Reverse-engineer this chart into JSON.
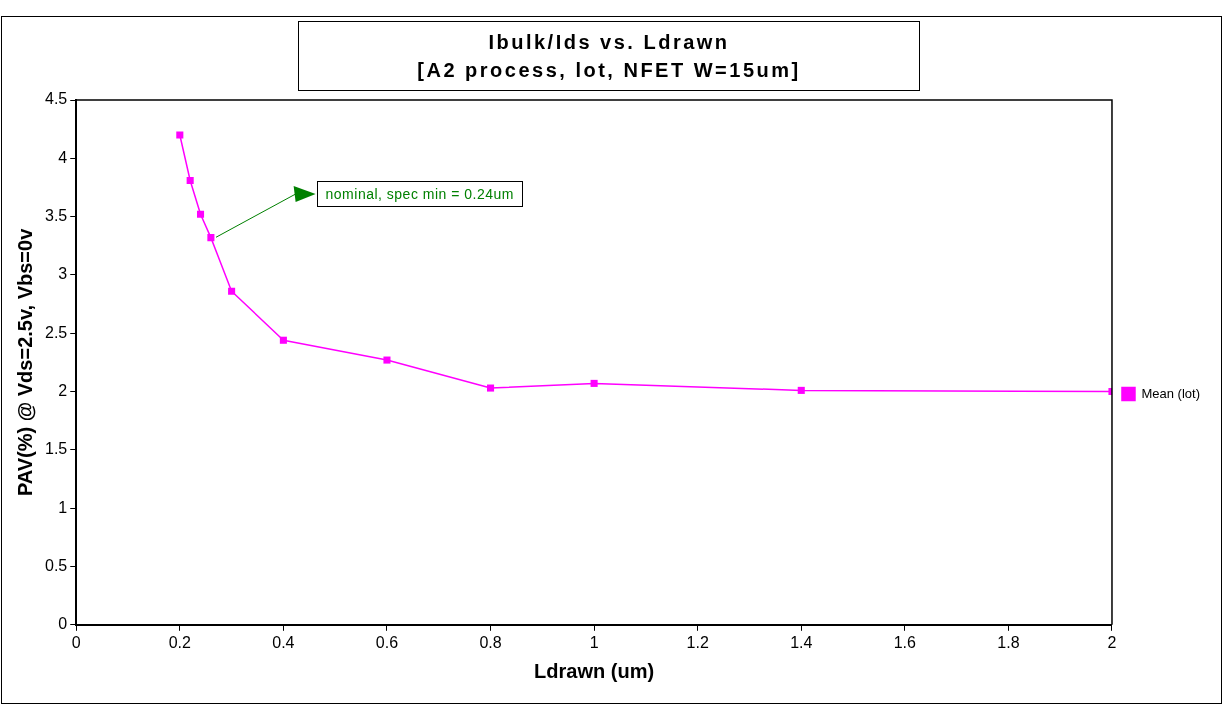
{
  "chart_data": {
    "type": "line",
    "title": "Ibulk/Ids vs. Ldrawn",
    "subtitle": "[A2 process, lot, NFET W=15um]",
    "xlabel": "Ldrawn (um)",
    "ylabel": "PAV(%) @ Vds=2.5v, Vbs=0v",
    "x": [
      0.2,
      0.22,
      0.24,
      0.26,
      0.3,
      0.4,
      0.6,
      0.8,
      1,
      1.4,
      2
    ],
    "series": [
      {
        "name": "Mean (lot)",
        "color": "#ff00ff",
        "values": [
          4.2,
          3.81,
          3.52,
          3.32,
          2.86,
          2.44,
          2.27,
          2.03,
          2.07,
          2.01,
          2.0
        ]
      }
    ],
    "xlim": [
      0,
      2
    ],
    "xticks": [
      0,
      0.2,
      0.4,
      0.6,
      0.8,
      1,
      1.2,
      1.4,
      1.6,
      1.8,
      2
    ],
    "ylim": [
      0,
      4.5
    ],
    "yticks": [
      0,
      0.5,
      1,
      1.5,
      2,
      2.5,
      3,
      3.5,
      4,
      4.5
    ],
    "annotations": [
      "nominal, spec min = 0.24um"
    ],
    "grid": false,
    "legend": "right",
    "marker": "square",
    "line_style": "solid"
  }
}
